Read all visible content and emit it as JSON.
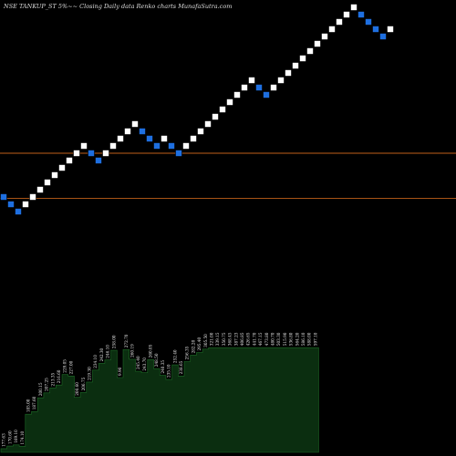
{
  "header": {
    "title": "NSE TANKUP_ST 5%~~ Closing Daily data  Renko  charts MunafaSutra.com"
  },
  "colors": {
    "background": "#000000",
    "up_brick": "#ffffff",
    "down_brick": "#1e6fe0",
    "brick_border": "#000000",
    "reference_line": "#c0601a",
    "volume_fill": "#0b2e10",
    "volume_stroke": "#1d6a26",
    "text": "#e8e8e8"
  },
  "chart_data": {
    "type": "renko",
    "brick_size_pct": 5,
    "bricks": [
      {
        "direction": "down",
        "level": 8
      },
      {
        "direction": "down",
        "level": 7
      },
      {
        "direction": "down",
        "level": 6
      },
      {
        "direction": "up",
        "level": 7
      },
      {
        "direction": "up",
        "level": 8
      },
      {
        "direction": "up",
        "level": 9
      },
      {
        "direction": "up",
        "level": 10
      },
      {
        "direction": "up",
        "level": 11
      },
      {
        "direction": "up",
        "level": 12
      },
      {
        "direction": "up",
        "level": 13
      },
      {
        "direction": "up",
        "level": 14
      },
      {
        "direction": "up",
        "level": 15
      },
      {
        "direction": "down",
        "level": 14
      },
      {
        "direction": "down",
        "level": 13
      },
      {
        "direction": "up",
        "level": 14
      },
      {
        "direction": "up",
        "level": 15
      },
      {
        "direction": "up",
        "level": 16
      },
      {
        "direction": "up",
        "level": 17
      },
      {
        "direction": "up",
        "level": 18
      },
      {
        "direction": "down",
        "level": 17
      },
      {
        "direction": "down",
        "level": 16
      },
      {
        "direction": "down",
        "level": 15
      },
      {
        "direction": "up",
        "level": 16
      },
      {
        "direction": "down",
        "level": 15
      },
      {
        "direction": "down",
        "level": 14
      },
      {
        "direction": "up",
        "level": 15
      },
      {
        "direction": "up",
        "level": 16
      },
      {
        "direction": "up",
        "level": 17
      },
      {
        "direction": "up",
        "level": 18
      },
      {
        "direction": "up",
        "level": 19
      },
      {
        "direction": "up",
        "level": 20
      },
      {
        "direction": "up",
        "level": 21
      },
      {
        "direction": "up",
        "level": 22
      },
      {
        "direction": "up",
        "level": 23
      },
      {
        "direction": "up",
        "level": 24
      },
      {
        "direction": "down",
        "level": 23
      },
      {
        "direction": "down",
        "level": 22
      },
      {
        "direction": "up",
        "level": 23
      },
      {
        "direction": "up",
        "level": 24
      },
      {
        "direction": "up",
        "level": 25
      },
      {
        "direction": "up",
        "level": 26
      },
      {
        "direction": "up",
        "level": 27
      },
      {
        "direction": "up",
        "level": 28
      },
      {
        "direction": "up",
        "level": 29
      },
      {
        "direction": "up",
        "level": 30
      },
      {
        "direction": "up",
        "level": 31
      },
      {
        "direction": "up",
        "level": 32
      },
      {
        "direction": "up",
        "level": 33
      },
      {
        "direction": "up",
        "level": 34
      },
      {
        "direction": "down",
        "level": 33
      },
      {
        "direction": "down",
        "level": 32
      },
      {
        "direction": "down",
        "level": 31
      },
      {
        "direction": "down",
        "level": 30
      },
      {
        "direction": "up",
        "level": 31
      }
    ],
    "reference_lines": [
      {
        "level": 14.5
      },
      {
        "level": 8.3
      }
    ],
    "volume_labels": [
      "177.63",
      "170.60",
      "169.10",
      "174.10",
      "185.00",
      "187.60",
      "200.15",
      "207.25",
      "213.35",
      "216.60",
      "229.05",
      "227.00",
      "200.60",
      "206.75",
      "219.30",
      "234.10",
      "242.30",
      "246.10",
      "258.00",
      "9.90",
      "272.70",
      "260.19",
      "245.40",
      "243.70",
      "260.05",
      "248.50",
      "240.35",
      "235.10",
      "252.40",
      "238.65",
      "256.35",
      "282.20",
      "295.40",
      "305.50",
      "321.00",
      "339.15",
      "350.75",
      "368.45",
      "387.23",
      "406.85",
      "426.65",
      "441.70",
      "467.15",
      "473.80",
      "480.70",
      "503.30",
      "515.90",
      "536.80",
      "564.20",
      "586.10",
      "588.00",
      "597.10"
    ],
    "volume_values": [
      1.0,
      1.7,
      2.0,
      1.6,
      10.2,
      10.9,
      14.6,
      15.9,
      17.2,
      18.0,
      20.8,
      20.4,
      14.7,
      16.0,
      18.8,
      22.0,
      23.8,
      24.7,
      27.3,
      20.0,
      27.5,
      24.9,
      21.7,
      21.3,
      24.8,
      22.4,
      20.6,
      19.5,
      23.4,
      20.4,
      24.3,
      26.0,
      26.7,
      27.6,
      28.0,
      28.0,
      28.0,
      28.0,
      28.0,
      28.0,
      28.0,
      28.0,
      28.0,
      28.0,
      28.0,
      28.0,
      28.0,
      28.0,
      28.0,
      28.0,
      28.0,
      28.0
    ]
  }
}
